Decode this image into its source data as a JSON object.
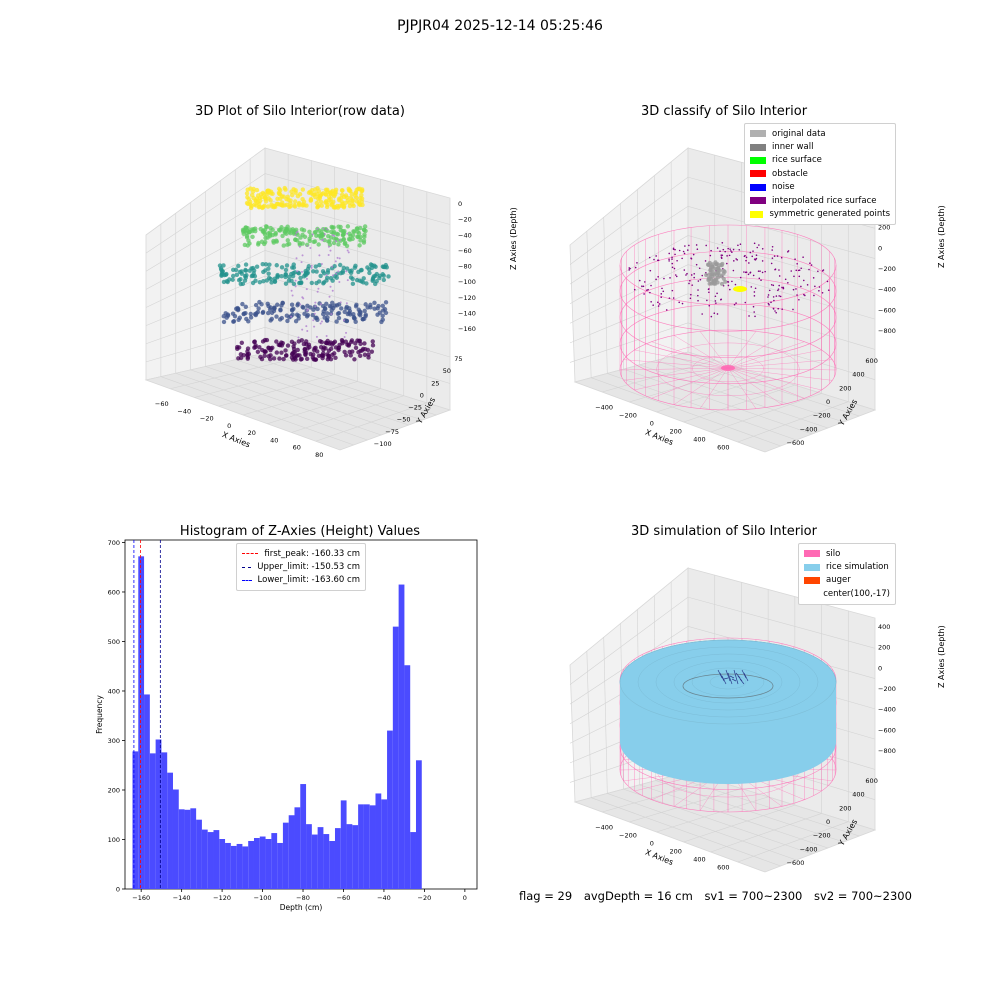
{
  "suptitle": "PJPJR04 2025-12-14 05:25:46",
  "footer": {
    "flag": "flag = 29",
    "avg_depth": "avgDepth = 16 cm",
    "sv1": "sv1 = 700~2300",
    "sv2": "sv2 = 700~2300"
  },
  "colors": {
    "hist_bar": "#4b4bff",
    "silo": "#ff69b4",
    "rice": "#87ceeb",
    "auger": "#ff4500"
  },
  "chart_data": [
    {
      "id": "raw",
      "type": "scatter",
      "title": "3D Plot of Silo Interior(row data)",
      "xlabel": "X Axies",
      "ylabel": "Y Axies",
      "zlabel": "Z Axies (Depth)",
      "xticks": [
        "−60",
        "−40",
        "−20",
        "0",
        "20",
        "40",
        "60",
        "80"
      ],
      "yticks": [
        "−100",
        "−75",
        "−50",
        "−25",
        "0",
        "25",
        "50",
        "75"
      ],
      "zticks": [
        "−160",
        "−140",
        "−120",
        "−100",
        "−80",
        "−60",
        "−40",
        "−20",
        "0"
      ]
    },
    {
      "id": "classify",
      "type": "scatter",
      "title": "3D classify of Silo Interior",
      "xlabel": "X Axies",
      "ylabel": "Y Axies",
      "zlabel": "Z Axies (Depth)",
      "xticks": [
        "−400",
        "−200",
        "0",
        "200",
        "400",
        "600"
      ],
      "yticks": [
        "−600",
        "−400",
        "−200",
        "0",
        "200",
        "400",
        "600"
      ],
      "zticks": [
        "−800",
        "−600",
        "−400",
        "−200",
        "0",
        "200",
        "400"
      ],
      "legend": [
        {
          "label": "original data",
          "color": "#b0b0b0"
        },
        {
          "label": "inner wall",
          "color": "#808080"
        },
        {
          "label": "rice surface",
          "color": "#00ff00"
        },
        {
          "label": "obstacle",
          "color": "#ff0000"
        },
        {
          "label": "noise",
          "color": "#0000ff"
        },
        {
          "label": "interpolated rice surface",
          "color": "#800080"
        },
        {
          "label": "symmetric generated points",
          "color": "#ffff00"
        }
      ]
    },
    {
      "id": "hist",
      "type": "bar",
      "title": "Histogram of Z-Axies (Height) Values",
      "xlabel": "Depth (cm)",
      "ylabel": "Frequency",
      "xlim": [
        -168,
        6
      ],
      "ylim": [
        0,
        705
      ],
      "xticks": [
        -160,
        -140,
        -120,
        -100,
        -80,
        -60,
        -40,
        -20,
        0
      ],
      "yticks": [
        0,
        100,
        200,
        300,
        400,
        500,
        600,
        700
      ],
      "bin_start": -164.3,
      "bin_width": 2.86,
      "values": [
        278,
        672,
        393,
        274,
        302,
        276,
        235,
        201,
        161,
        160,
        163,
        140,
        120,
        115,
        119,
        101,
        93,
        87,
        91,
        86,
        97,
        103,
        106,
        101,
        113,
        93,
        134,
        149,
        165,
        212,
        131,
        110,
        125,
        111,
        97,
        123,
        179,
        131,
        129,
        171,
        171,
        169,
        193,
        181,
        320,
        530,
        615,
        452,
        115,
        260
      ],
      "vlines": [
        {
          "label": "first_peak: -160.33 cm",
          "x": -160.33,
          "color": "#ff0000"
        },
        {
          "label": "Upper_limit: -150.53 cm",
          "x": -150.53,
          "color": "#00008b"
        },
        {
          "label": "Lower_limit: -163.60 cm",
          "x": -163.6,
          "color": "#0000ff"
        }
      ]
    },
    {
      "id": "sim",
      "type": "scatter",
      "title": "3D simulation of Silo Interior",
      "xlabel": "X Axies",
      "ylabel": "Y Axies",
      "zlabel": "Z Axies (Depth)",
      "xticks": [
        "−400",
        "−200",
        "0",
        "200",
        "400",
        "600"
      ],
      "yticks": [
        "−600",
        "−400",
        "−200",
        "0",
        "200",
        "400",
        "600"
      ],
      "zticks": [
        "−800",
        "−600",
        "−400",
        "−200",
        "0",
        "200",
        "400"
      ],
      "legend": [
        {
          "label": "silo",
          "color": "#ff69b4"
        },
        {
          "label": "rice simulation",
          "color": "#87ceeb"
        },
        {
          "label": "auger",
          "color": "#ff4500"
        },
        {
          "label": "center(100,-17)",
          "color": ""
        }
      ]
    }
  ]
}
